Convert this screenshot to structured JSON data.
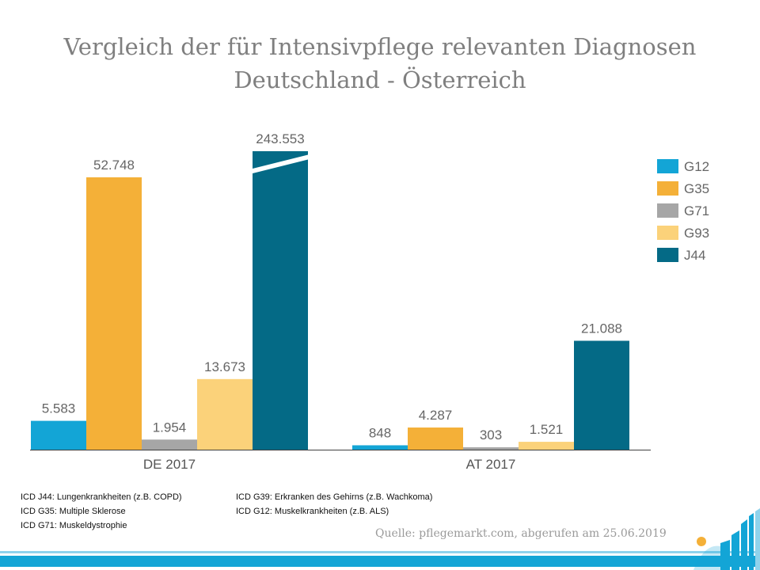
{
  "chart_data": {
    "type": "bar",
    "title": "Vergleich der für Intensivpflege relevanten Diagnosen",
    "subtitle": "Deutschland - Österreich",
    "categories": [
      "DE 2017",
      "AT 2017"
    ],
    "series": [
      {
        "name": "G12",
        "color": "#13A5D6",
        "values": [
          5583,
          848
        ],
        "labels": [
          "5.583",
          "848"
        ]
      },
      {
        "name": "G35",
        "color": "#F4B038",
        "values": [
          52748,
          4287
        ],
        "labels": [
          "52.748",
          "4.287"
        ]
      },
      {
        "name": "G71",
        "color": "#A6A6A6",
        "values": [
          1954,
          303
        ],
        "labels": [
          "1.954",
          "303"
        ]
      },
      {
        "name": "G93",
        "color": "#FBD27A",
        "values": [
          13673,
          1521
        ],
        "labels": [
          "13.673",
          "1.521"
        ]
      },
      {
        "name": "J44",
        "color": "#046A86",
        "values": [
          243553,
          21088
        ],
        "labels": [
          "243.553",
          "21.088"
        ]
      }
    ],
    "axis_break": {
      "series": "J44",
      "category": "DE 2017"
    },
    "xlabel": "",
    "ylabel": "",
    "ylim": [
      0,
      55000
    ],
    "grid": false,
    "legend": "right"
  },
  "notes": {
    "left": [
      "ICD J44: Lungenkrankheiten (z.B. COPD)",
      "ICD G35: Multiple Sklerose",
      "ICD G71: Muskeldystrophie"
    ],
    "right": [
      "ICD G39: Erkranken des Gehirns (z.B. Wachkoma)",
      "ICD G12: Muskelkrankheiten (z.B. ALS)"
    ]
  },
  "source": "Quelle: pflegemarkt.com, abgerufen am 25.06.2019",
  "brand_colors": {
    "band": "#13A5D6",
    "band_light": "#8FD3EC",
    "logo_dot": "#F4B038"
  }
}
